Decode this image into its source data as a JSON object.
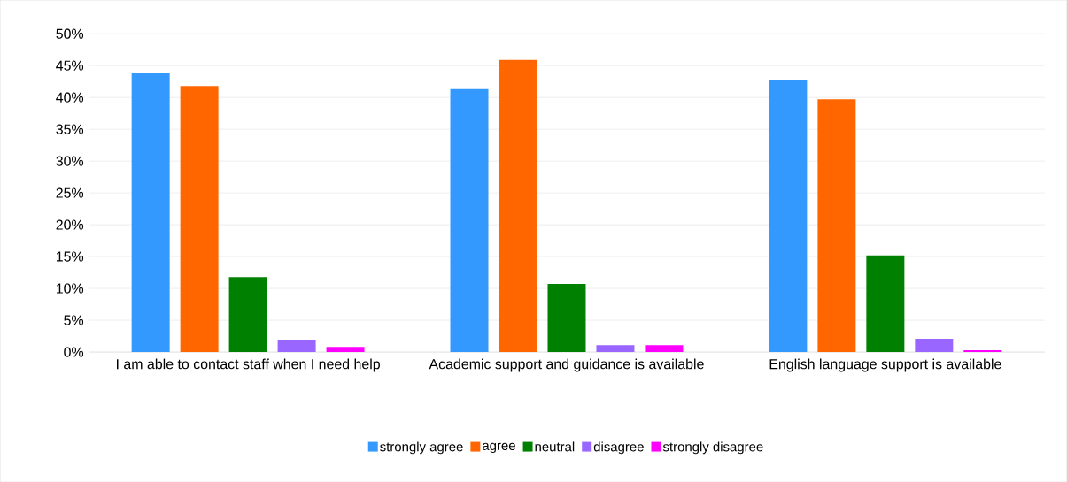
{
  "chart_data": {
    "type": "bar",
    "categories": [
      "I am able to contact staff when I need help",
      "Academic support and guidance is available",
      "English language support is available"
    ],
    "series": [
      {
        "name": "strongly agree",
        "color": "#3399ff",
        "values": [
          43.9,
          41.3,
          42.7
        ]
      },
      {
        "name": "agree",
        "color": "#ff6600",
        "values": [
          41.8,
          45.9,
          39.7
        ]
      },
      {
        "name": "neutral",
        "color": "#008000",
        "values": [
          11.8,
          10.7,
          15.2
        ]
      },
      {
        "name": "disagree",
        "color": "#9966ff",
        "values": [
          1.9,
          1.1,
          2.1
        ]
      },
      {
        "name": "strongly disagree",
        "color": "#ff00ff",
        "values": [
          0.8,
          1.1,
          0.3
        ]
      }
    ],
    "ylim": [
      0,
      50
    ],
    "yticks": [
      {
        "value": 0,
        "label": "0%"
      },
      {
        "value": 5,
        "label": "5%"
      },
      {
        "value": 10,
        "label": "10%"
      },
      {
        "value": 15,
        "label": "15%"
      },
      {
        "value": 20,
        "label": "20%"
      },
      {
        "value": 25,
        "label": "25%"
      },
      {
        "value": 30,
        "label": "30%"
      },
      {
        "value": 35,
        "label": "35%"
      },
      {
        "value": 40,
        "label": "40%"
      },
      {
        "value": 45,
        "label": "45%"
      },
      {
        "value": 50,
        "label": "50%"
      }
    ],
    "grid": "y",
    "legend": "bottom"
  }
}
